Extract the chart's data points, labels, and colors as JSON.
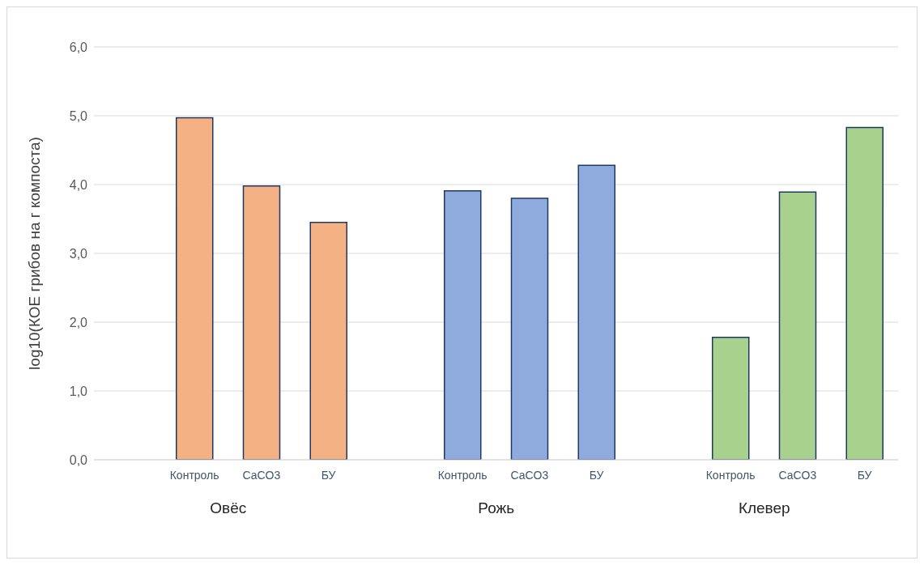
{
  "chart_data": {
    "type": "bar",
    "ylabel": "log10(КОЕ грибов на г компоста)",
    "categories": [
      "Контроль",
      "CaCO3",
      "БУ",
      "Контроль",
      "CaCO3",
      "БУ",
      "Контроль",
      "CaCO3",
      "БУ"
    ],
    "series": [
      {
        "name": "Овёс",
        "color": "#f4b183",
        "values": [
          4.97,
          3.98,
          3.45,
          null,
          null,
          null,
          null,
          null,
          null
        ]
      },
      {
        "name": "Рожь",
        "color": "#8faadc",
        "values": [
          null,
          null,
          null,
          3.91,
          3.8,
          4.28,
          null,
          null,
          null
        ]
      },
      {
        "name": "Клевер",
        "color": "#a9d18e",
        "values": [
          null,
          null,
          null,
          null,
          null,
          null,
          1.78,
          3.89,
          4.83
        ]
      }
    ],
    "ylim": [
      0,
      6
    ],
    "yticks": [
      {
        "value": 0,
        "label": "0,0"
      },
      {
        "value": 1,
        "label": "1,0"
      },
      {
        "value": 2,
        "label": "2,0"
      },
      {
        "value": 3,
        "label": "3,0"
      },
      {
        "value": 4,
        "label": "4,0"
      },
      {
        "value": 5,
        "label": "5,0"
      },
      {
        "value": 6,
        "label": "6,0"
      }
    ],
    "grid": "y",
    "legend": false
  }
}
